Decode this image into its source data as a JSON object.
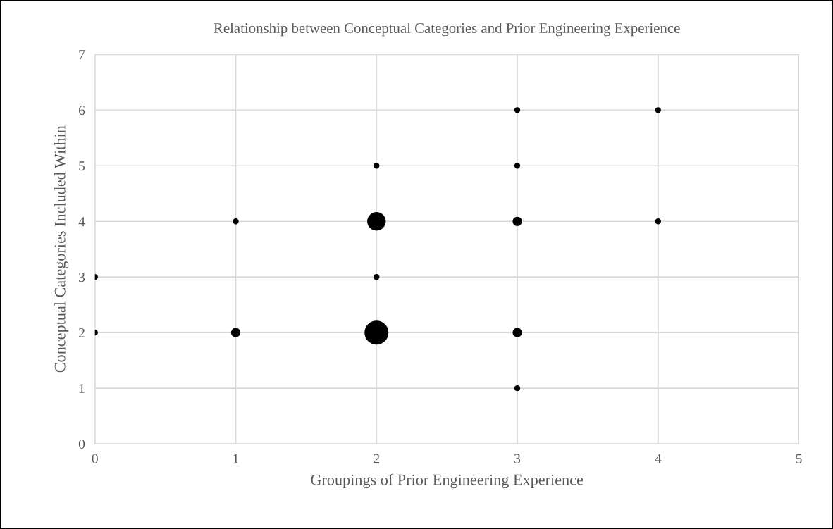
{
  "chart_data": {
    "type": "bubble",
    "title": "Relationship between Conceptual Categories and Prior Engineering Experience",
    "xlabel": "Groupings of Prior Engineering Experience",
    "ylabel": "Conceptual Categories Included Within",
    "x": [
      0,
      0,
      1,
      1,
      2,
      2,
      2,
      2,
      3,
      3,
      3,
      3,
      3,
      4,
      4
    ],
    "values": [
      2,
      3,
      2,
      4,
      2,
      3,
      4,
      5,
      1,
      2,
      4,
      5,
      6,
      4,
      6
    ],
    "sizes": [
      0.06,
      0.06,
      0.15,
      0.06,
      1,
      0.06,
      0.6,
      0.06,
      0.06,
      0.15,
      0.15,
      0.06,
      0.06,
      0.06,
      0.06
    ],
    "color": "#000000",
    "xlim": [
      0,
      5
    ],
    "xticks": [
      0,
      1,
      2,
      3,
      4,
      5
    ],
    "ylim": [
      0,
      7
    ],
    "yticks": [
      0,
      1,
      2,
      3,
      4,
      5,
      6,
      7
    ],
    "grid": true,
    "marker": "circle"
  }
}
